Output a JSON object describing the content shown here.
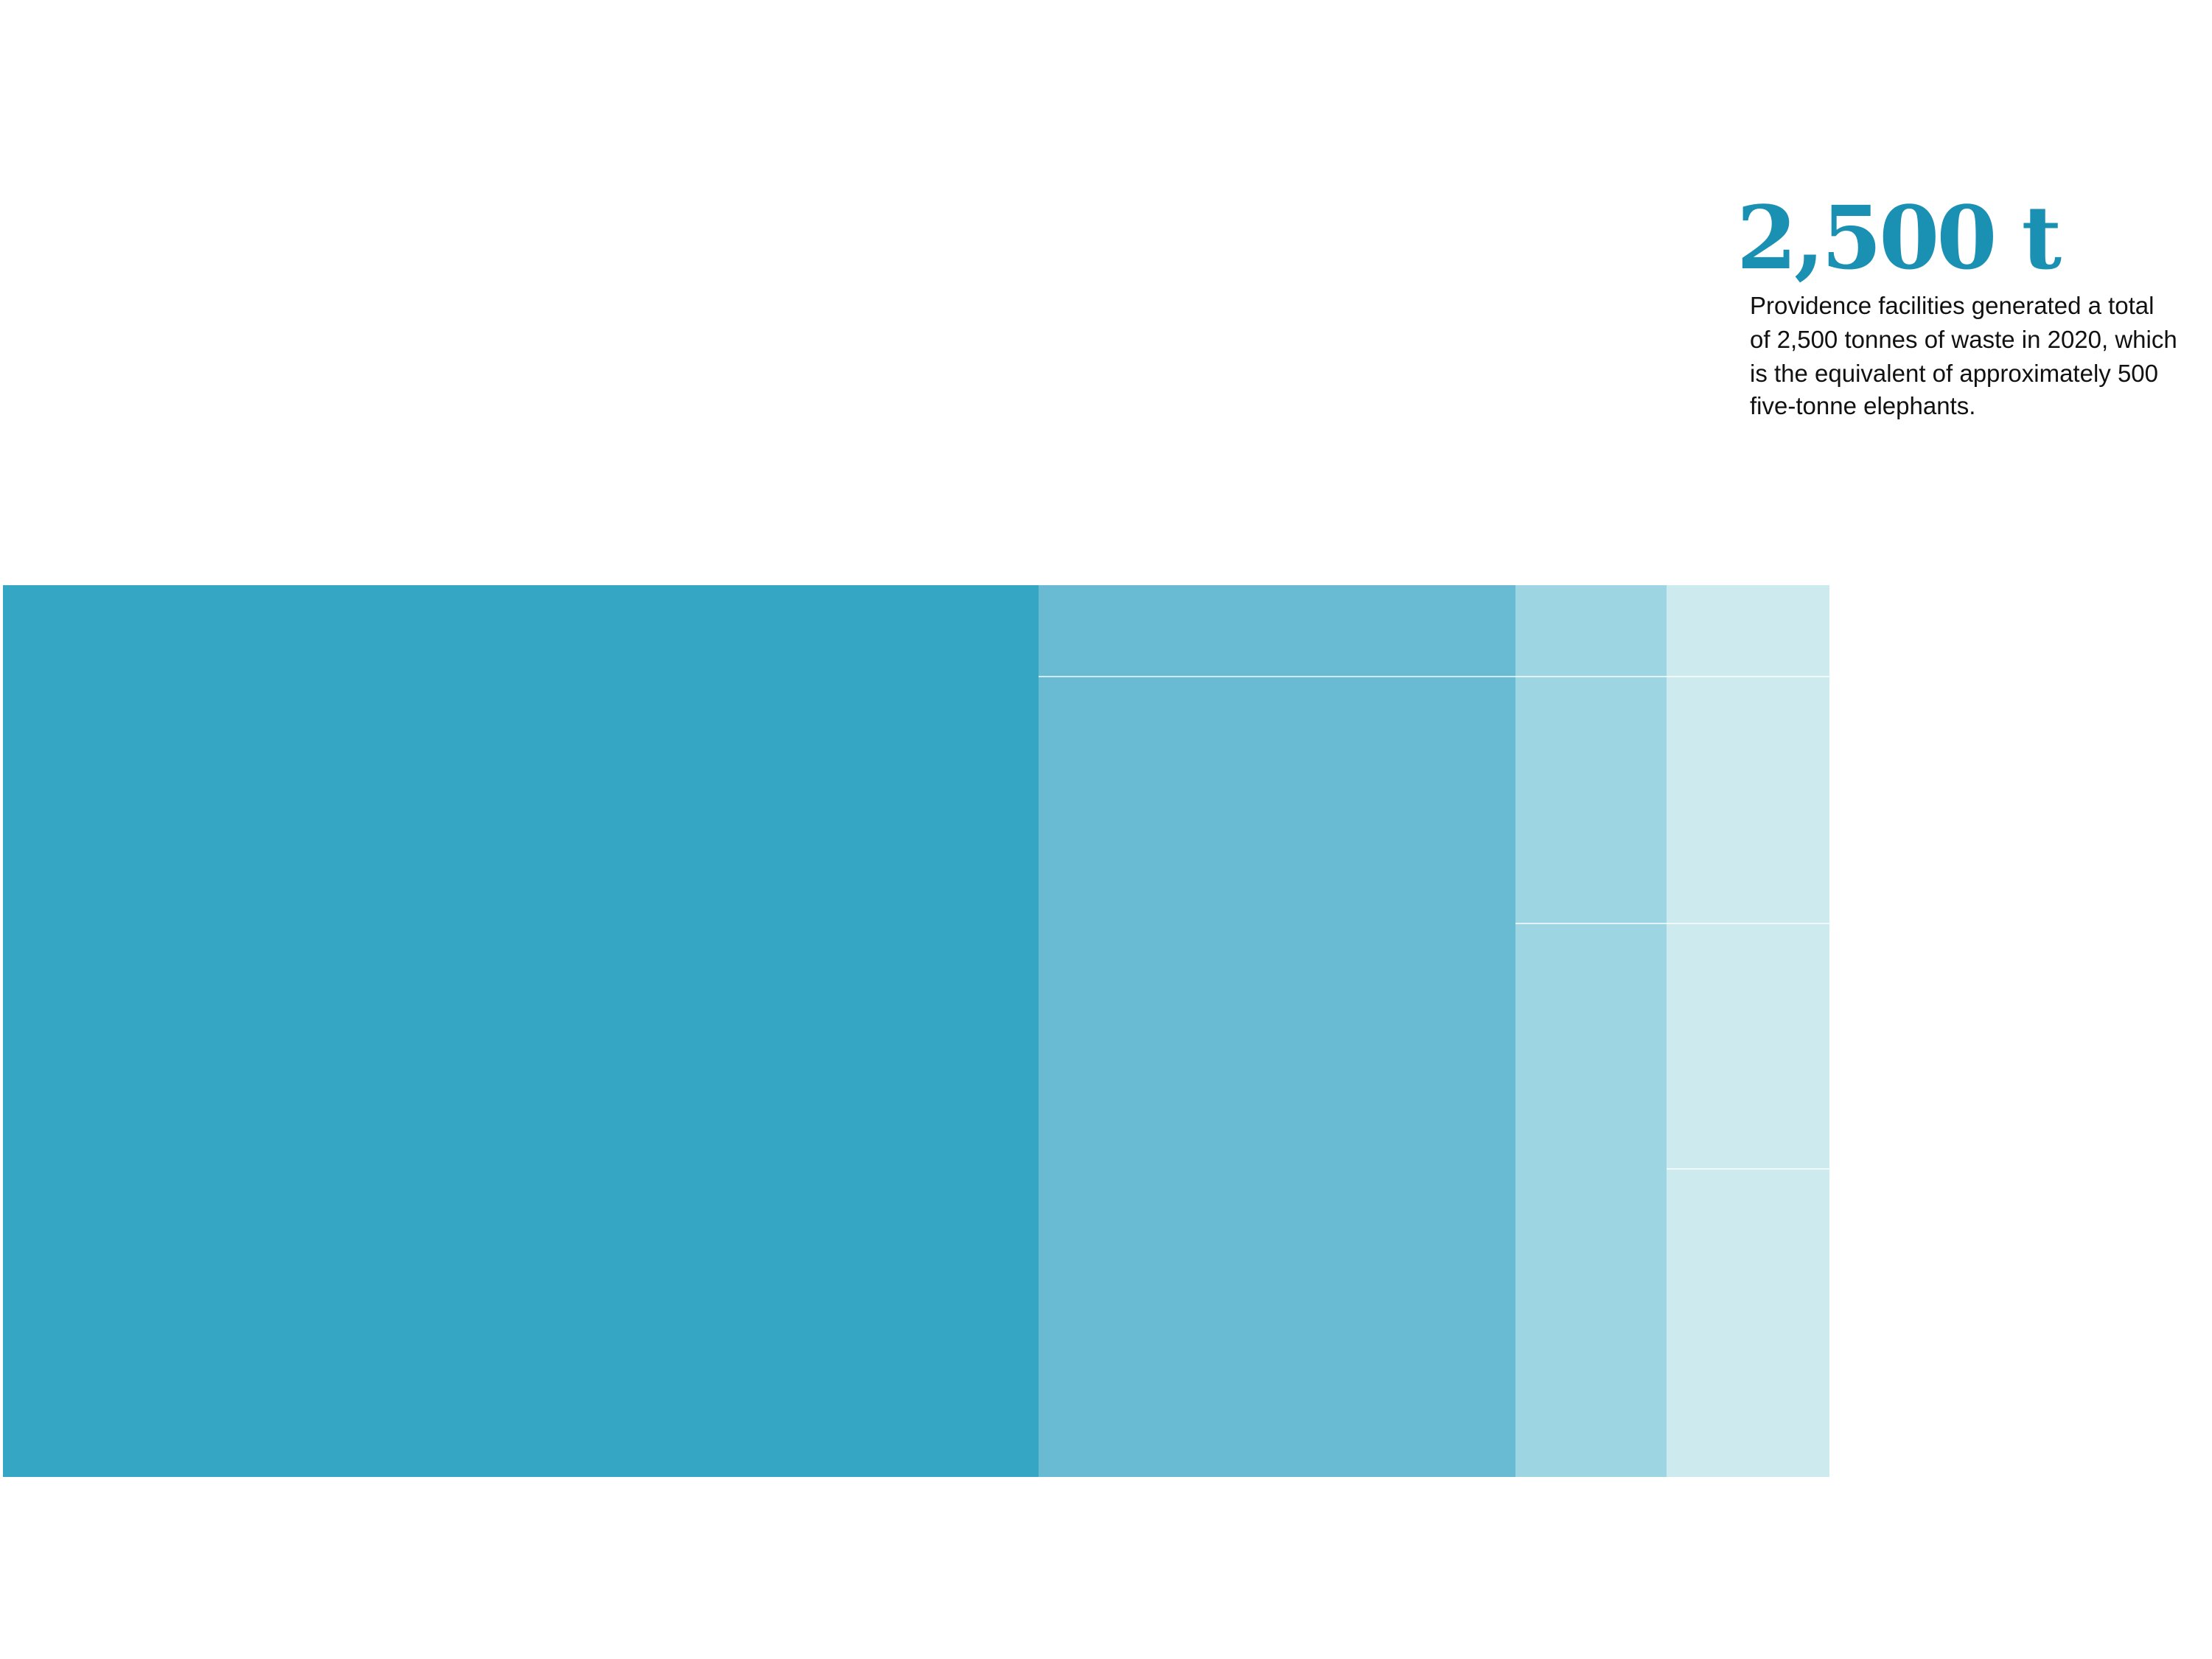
{
  "headline": {
    "value": "2,500 t",
    "lines": [
      "Providence facilities generated a total",
      "of 2,500 tonnes of waste in 2020, which",
      "is the equivalent of approximately 500",
      "five-tonne elephants."
    ]
  }
}
